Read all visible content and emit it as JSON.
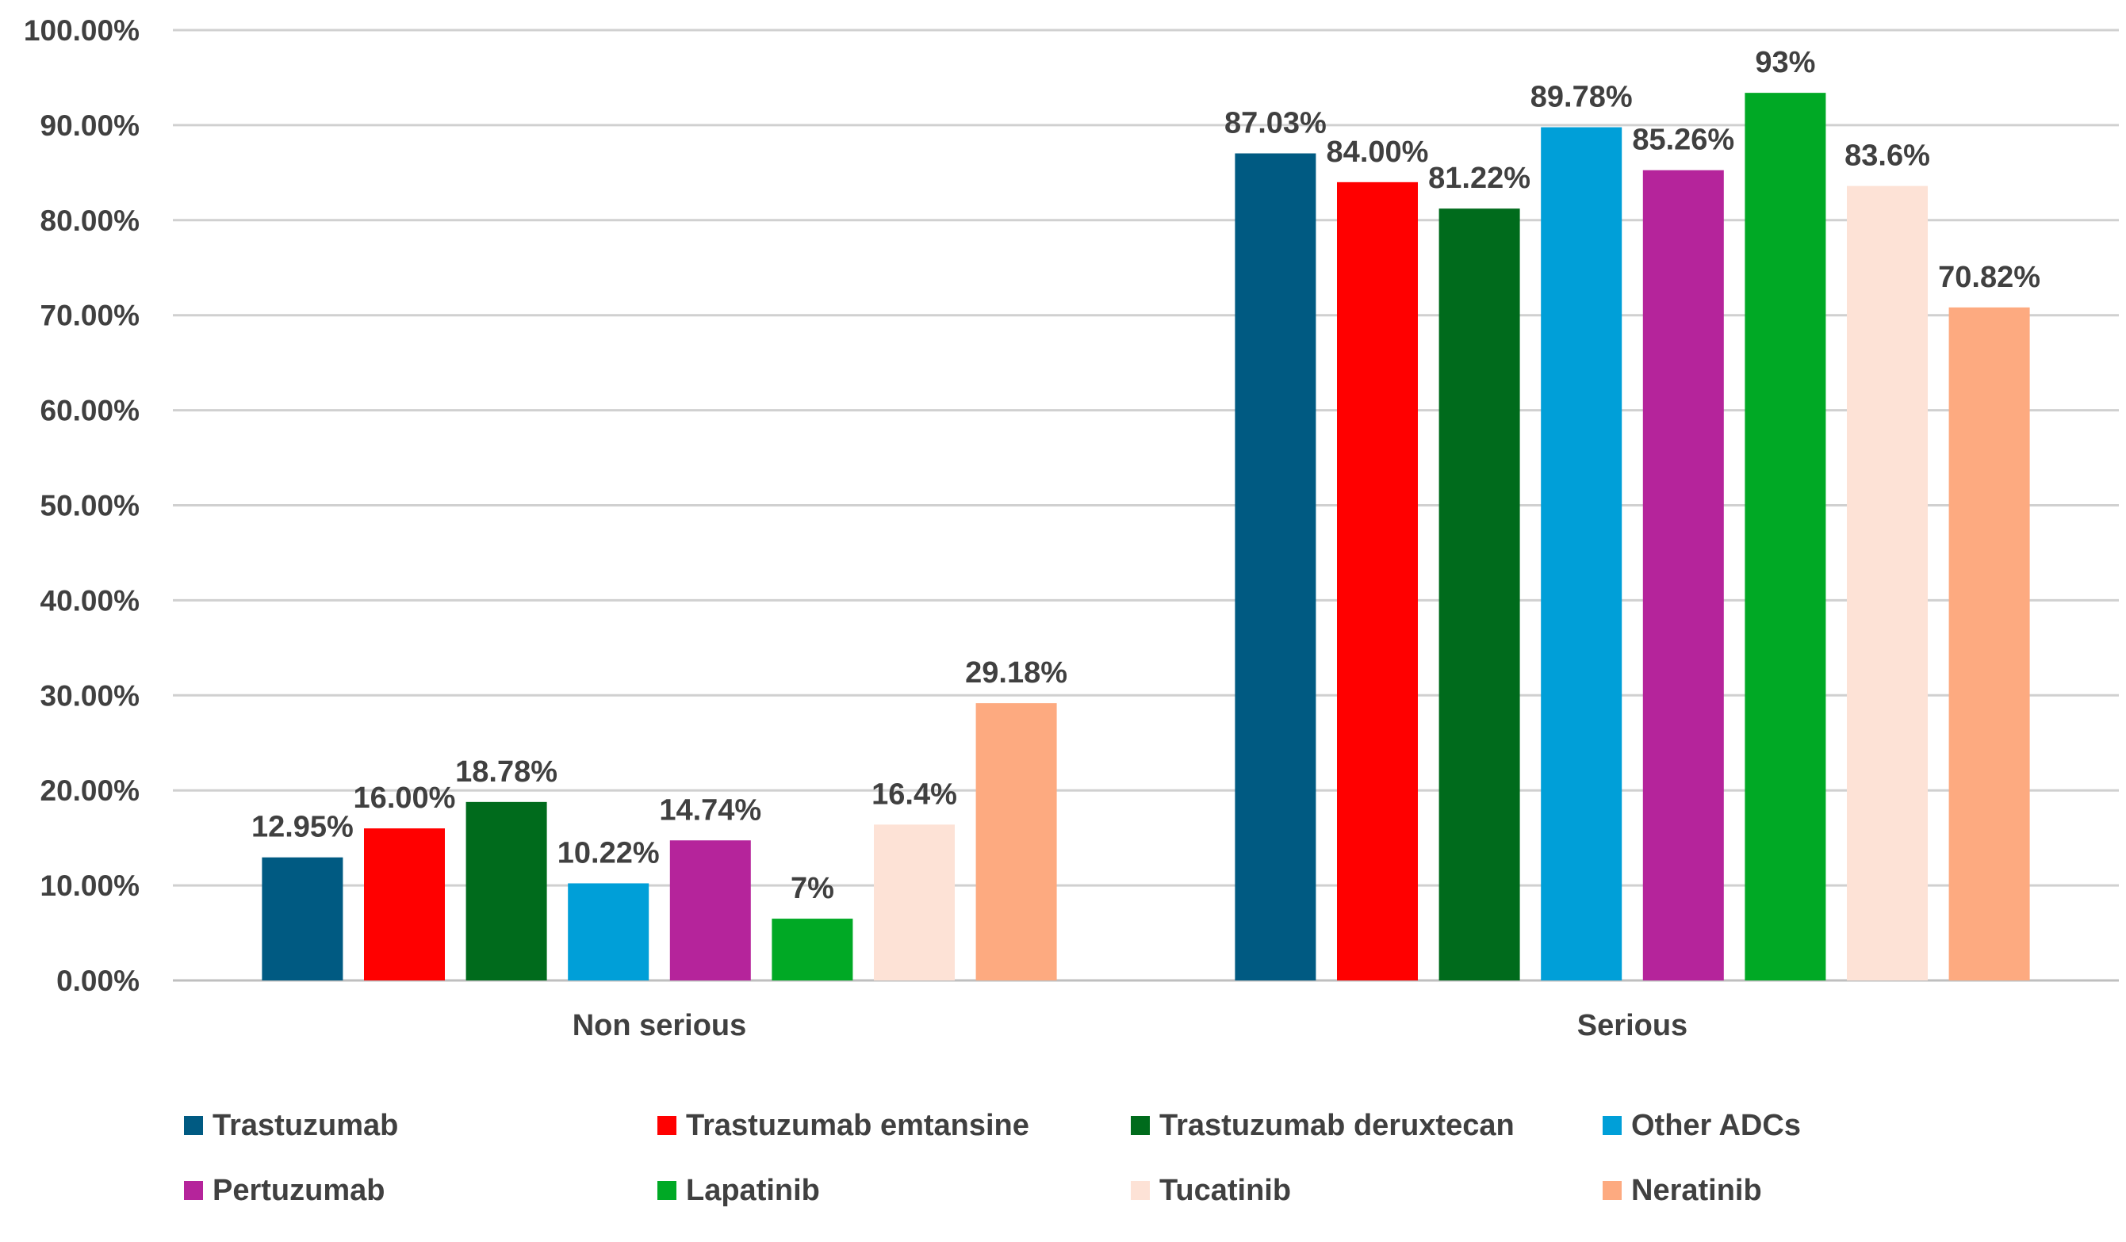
{
  "chart_data": {
    "type": "bar",
    "title": "",
    "xlabel": "",
    "ylabel": "",
    "ylim": [
      0,
      100
    ],
    "yticks": [
      "0.00%",
      "10.00%",
      "20.00%",
      "30.00%",
      "40.00%",
      "50.00%",
      "60.00%",
      "70.00%",
      "80.00%",
      "90.00%",
      "100.00%"
    ],
    "grid": true,
    "legend_position": "bottom",
    "categories": [
      "Non serious",
      "Serious"
    ],
    "series": [
      {
        "name": "Trastuzumab",
        "color": "#005a82",
        "values": [
          12.95,
          87.03
        ],
        "labels": [
          "12.95%",
          "87.03%"
        ]
      },
      {
        "name": "Trastuzumab emtansine",
        "color": "#ff0000",
        "values": [
          16.0,
          84.0
        ],
        "labels": [
          "16.00%",
          "84.00%"
        ]
      },
      {
        "name": "Trastuzumab deruxtecan",
        "color": "#006b1c",
        "values": [
          18.78,
          81.22
        ],
        "labels": [
          "18.78%",
          "81.22%"
        ]
      },
      {
        "name": "Other ADCs",
        "color": "#009fd8",
        "values": [
          10.22,
          89.78
        ],
        "labels": [
          "10.22%",
          "89.78%"
        ]
      },
      {
        "name": "Pertuzumab",
        "color": "#b5249b",
        "values": [
          14.74,
          85.26
        ],
        "labels": [
          "14.74%",
          "85.26%"
        ]
      },
      {
        "name": "Lapatinib",
        "color": "#00a925",
        "values": [
          6.5,
          93.4
        ],
        "labels": [
          "7%",
          "93%"
        ]
      },
      {
        "name": "Tucatinib",
        "color": "#fde2d6",
        "values": [
          16.4,
          83.6
        ],
        "labels": [
          "16.4%",
          "83.6%"
        ]
      },
      {
        "name": "Neratinib",
        "color": "#fdaa80",
        "values": [
          29.18,
          70.82
        ],
        "labels": [
          "29.18%",
          "70.82%"
        ]
      }
    ]
  }
}
